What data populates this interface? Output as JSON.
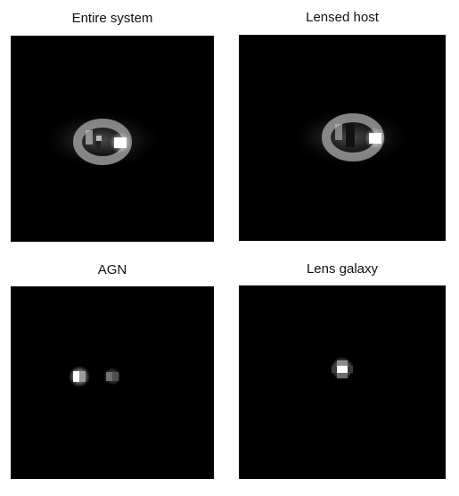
{
  "panels": [
    {
      "id": "entire",
      "title": "Entire system"
    },
    {
      "id": "host",
      "title": "Lensed host"
    },
    {
      "id": "agn",
      "title": "AGN"
    },
    {
      "id": "lens",
      "title": "Lens galaxy"
    }
  ],
  "colors": {
    "background": "#000000",
    "page": "#ffffff",
    "title": "#111111"
  }
}
